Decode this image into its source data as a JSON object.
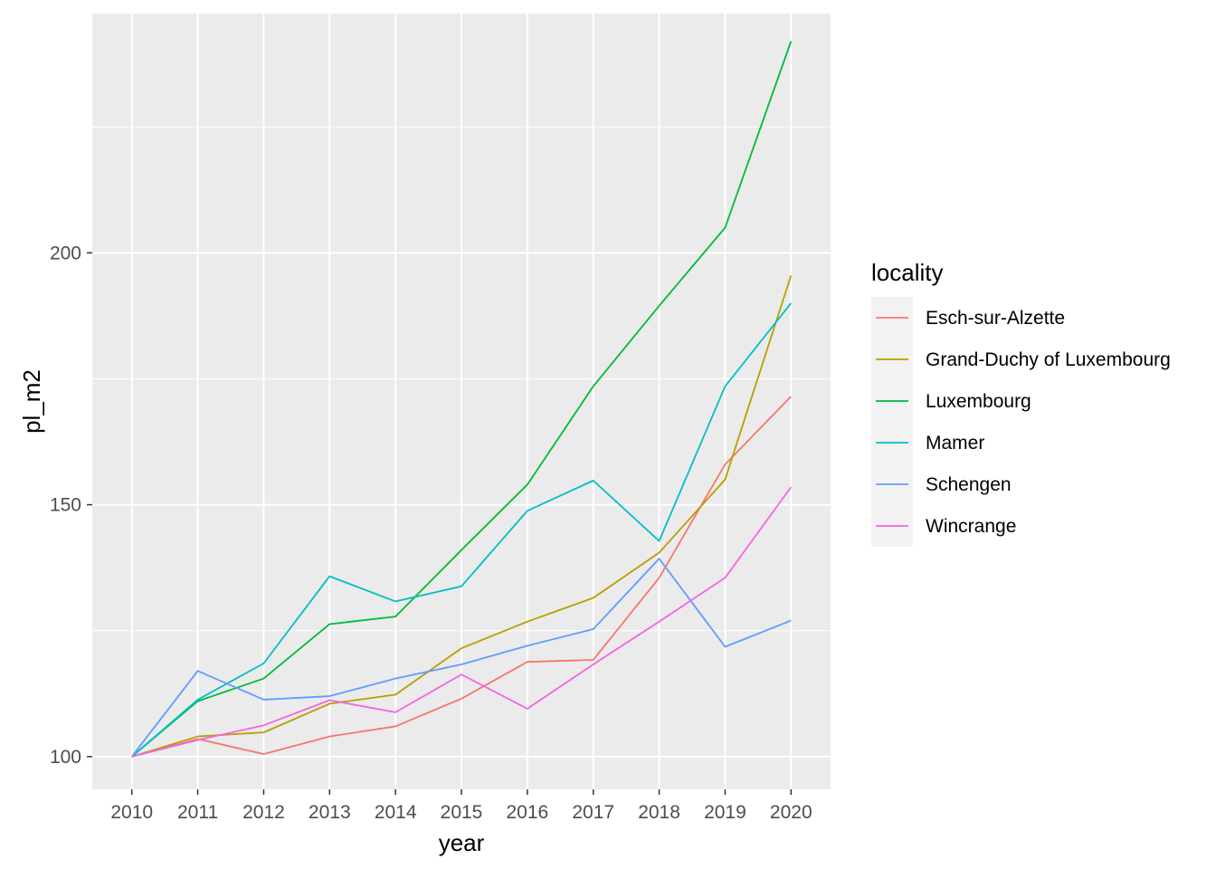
{
  "chart_data": {
    "type": "line",
    "xlabel": "year",
    "ylabel": "pl_m2",
    "x": [
      2010,
      2011,
      2012,
      2013,
      2014,
      2015,
      2016,
      2017,
      2018,
      2019,
      2020
    ],
    "xlim": [
      2009.4,
      2020.6
    ],
    "ylim": [
      93.5,
      247.5
    ],
    "y_ticks": [
      100,
      150,
      200
    ],
    "y_minor_ticks": [
      125,
      175,
      225
    ],
    "grid": true,
    "legend": {
      "title": "locality",
      "position": "right"
    },
    "series": [
      {
        "name": "Esch-sur-Alzette",
        "color": "#F8766D",
        "values": [
          100,
          103.5,
          100.5,
          104,
          106,
          111.5,
          118.8,
          119.2,
          135.5,
          158,
          171.5
        ]
      },
      {
        "name": "Grand-Duchy of Luxembourg",
        "color": "#B79F00",
        "values": [
          100,
          104,
          104.8,
          110.5,
          112.3,
          121.5,
          126.8,
          131.5,
          140.5,
          155,
          195.5
        ]
      },
      {
        "name": "Luxembourg",
        "color": "#00BA38",
        "values": [
          100,
          111,
          115.5,
          126.3,
          127.8,
          141,
          154,
          173.5,
          189.5,
          205,
          242
        ]
      },
      {
        "name": "Mamer",
        "color": "#00BFC4",
        "values": [
          100,
          111.3,
          118.5,
          135.8,
          130.8,
          133.8,
          148.8,
          154.8,
          142.8,
          173.5,
          190
        ]
      },
      {
        "name": "Schengen",
        "color": "#619CFF",
        "values": [
          100,
          117,
          111.3,
          112,
          115.5,
          118.3,
          122,
          125.3,
          139.3,
          121.8,
          127
        ]
      },
      {
        "name": "Wincrange",
        "color": "#F564E3",
        "values": [
          100,
          103.3,
          106.2,
          111.2,
          108.8,
          116.3,
          109.5,
          118.3,
          126.8,
          135.5,
          153.5
        ]
      }
    ]
  }
}
